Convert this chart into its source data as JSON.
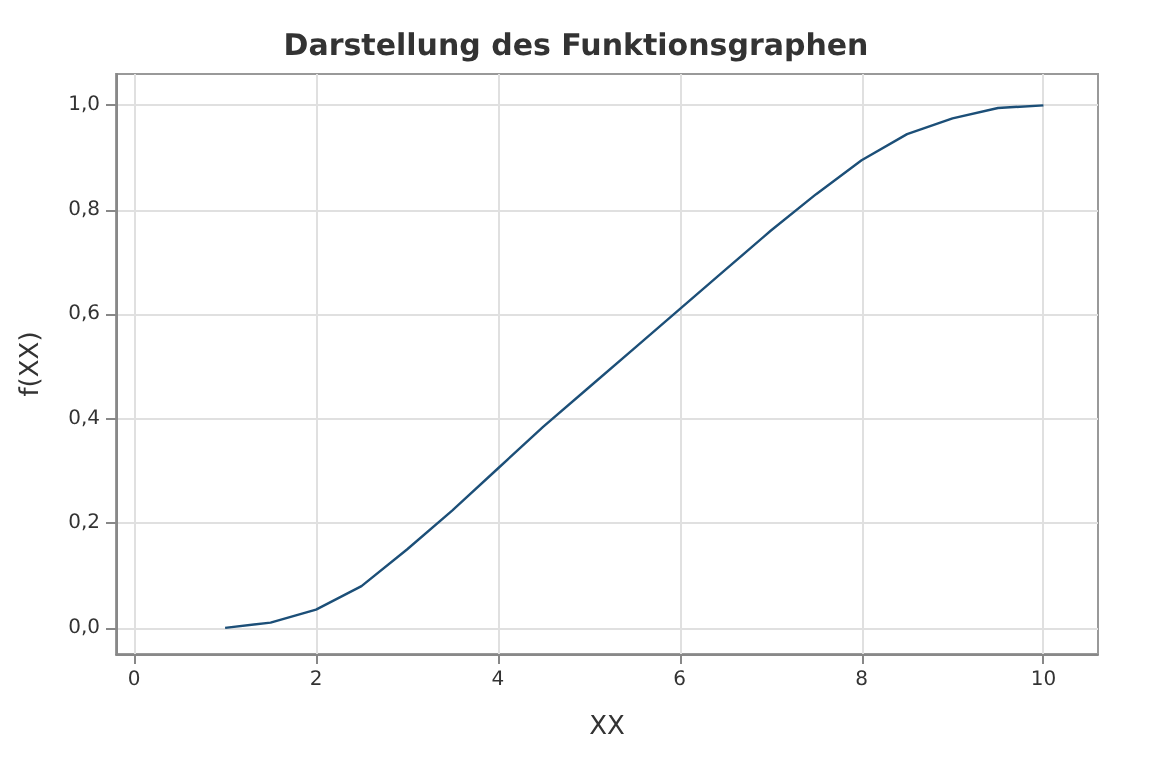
{
  "chart_data": {
    "type": "line",
    "title": "Darstellung des Funktionsgraphen",
    "xlabel": "XX",
    "ylabel": "f(XX)",
    "x": [
      1,
      1.5,
      2,
      2.5,
      3,
      3.5,
      4,
      4.5,
      5,
      5.5,
      6,
      6.5,
      7,
      7.5,
      8,
      8.5,
      9,
      9.5,
      10
    ],
    "series": [
      {
        "color": "#1c4f78",
        "values": [
          0,
          0.01,
          0.035,
          0.08,
          0.15,
          0.225,
          0.305,
          0.385,
          0.46,
          0.535,
          0.61,
          0.685,
          0.76,
          0.83,
          0.895,
          0.945,
          0.975,
          0.995,
          1.0
        ]
      }
    ],
    "xlim": [
      -0.2,
      10.6
    ],
    "xticks": [
      0,
      2,
      4,
      6,
      8,
      10
    ],
    "ylim": [
      -0.05,
      1.06
    ],
    "yticks": [
      {
        "value": 0,
        "label": "0,0"
      },
      {
        "value": 0.2,
        "label": "0,2"
      },
      {
        "value": 0.4,
        "label": "0,4"
      },
      {
        "value": 0.6,
        "label": "0,6"
      },
      {
        "value": 0.8,
        "label": "0,8"
      },
      {
        "value": 1,
        "label": "1,0"
      }
    ],
    "grid": true,
    "marker": "none",
    "line_style": "solid"
  }
}
